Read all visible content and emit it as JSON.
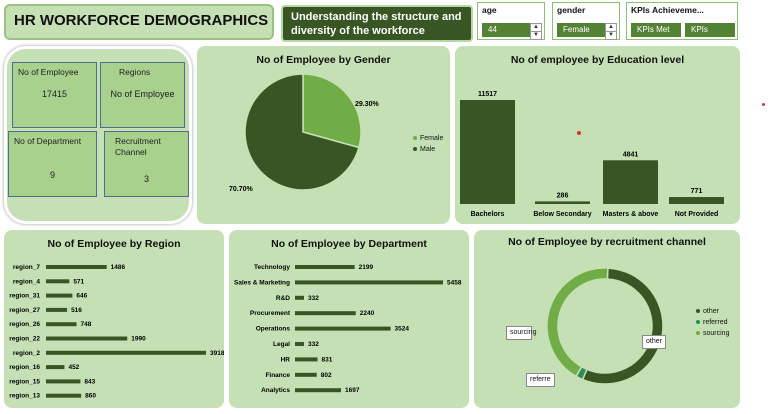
{
  "header": {
    "title": "HR WORKFORCE DEMOGRAPHICS",
    "subtitle": "Understanding the structure and diversity of the workforce"
  },
  "slicers": {
    "age": {
      "title": "age",
      "value": "44"
    },
    "gender": {
      "title": "gender",
      "value": "Female"
    },
    "kpis": {
      "title": "KPIs Achieveme...",
      "items": [
        "KPIs Met",
        "KPIs Not..."
      ]
    }
  },
  "kpi_cards": {
    "employees": {
      "label": "No of Employee",
      "value": "17415"
    },
    "regions": {
      "label": "Regions",
      "value": "No of Employee"
    },
    "departments": {
      "label": "No of Department",
      "value": "9"
    },
    "recruitment": {
      "label": "Recruitment Channel",
      "value": "3"
    }
  },
  "colors": {
    "dark": "#375623",
    "light": "#70ad47",
    "panel": "#c5e0b4"
  },
  "chart_data": [
    {
      "id": "gender",
      "type": "pie",
      "title": "No of Employee by Gender",
      "categories": [
        "Female",
        "Male"
      ],
      "values": [
        29.3,
        70.7
      ],
      "labels": [
        "29.30%",
        "70.70%"
      ],
      "colors": [
        "#70ad47",
        "#375623"
      ],
      "legend": "right"
    },
    {
      "id": "education",
      "type": "bar",
      "title": "No of employee by Education level",
      "categories": [
        "Bachelors",
        "Below Secondary",
        "Masters & above",
        "Not Provided"
      ],
      "values": [
        11517,
        286,
        4841,
        771
      ],
      "ylim": [
        0,
        11517
      ]
    },
    {
      "id": "region",
      "type": "bar",
      "orientation": "horizontal",
      "title": "No of Employee by Region",
      "categories": [
        "region_7",
        "region_4",
        "region_31",
        "region_27",
        "region_26",
        "region_22",
        "region_2",
        "region_16",
        "region_15",
        "region_13"
      ],
      "values": [
        1486,
        571,
        646,
        516,
        748,
        1990,
        3918,
        452,
        843,
        860
      ]
    },
    {
      "id": "department",
      "type": "bar",
      "orientation": "horizontal",
      "title": "No of Employee by Department",
      "categories": [
        "Technology",
        "Sales & Marketing",
        "R&D",
        "Procurement",
        "Operations",
        "Legal",
        "HR",
        "Finance",
        "Analytics"
      ],
      "values": [
        2199,
        5458,
        332,
        2240,
        3524,
        332,
        831,
        802,
        1697
      ]
    },
    {
      "id": "recruitment",
      "type": "pie",
      "donut": true,
      "title": "No of Employee by recruitment channel",
      "categories": [
        "other",
        "referred",
        "sourcing"
      ],
      "values": [
        55.5,
        2.0,
        42.5
      ],
      "colors": [
        "#375623",
        "#2e8b57",
        "#70ad47"
      ],
      "callouts": [
        "sourcing",
        "other",
        "referre"
      ],
      "legend": "right"
    }
  ]
}
